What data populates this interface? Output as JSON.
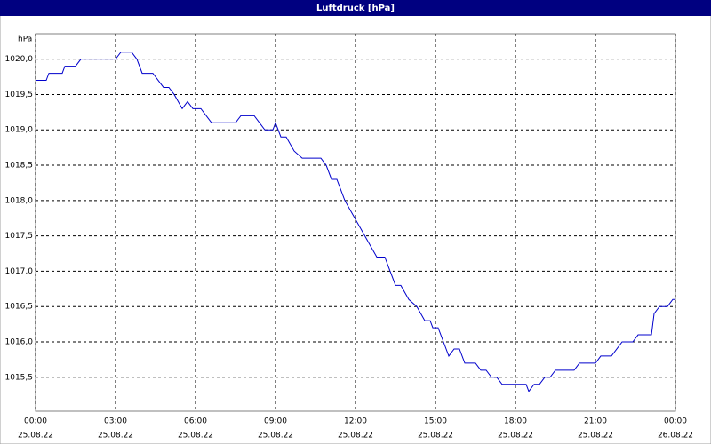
{
  "chart_data": {
    "type": "line",
    "title": "Luftdruck [hPa]",
    "y_label": "hPa",
    "x": [
      0,
      0.4,
      0.5,
      1.0,
      1.1,
      1.5,
      1.7,
      3.0,
      3.2,
      3.6,
      3.8,
      4.0,
      4.4,
      4.6,
      4.8,
      5.0,
      5.2,
      5.5,
      5.7,
      5.9,
      6.2,
      6.4,
      6.6,
      7.5,
      7.7,
      8.2,
      8.4,
      8.6,
      8.9,
      9.0,
      9.2,
      9.4,
      9.7,
      10.0,
      10.7,
      10.9,
      11.1,
      11.3,
      11.6,
      11.9,
      12.2,
      12.5,
      12.8,
      13.1,
      13.3,
      13.5,
      13.7,
      14.0,
      14.3,
      14.6,
      14.8,
      14.9,
      15.1,
      15.3,
      15.5,
      15.7,
      15.9,
      16.1,
      16.5,
      16.7,
      16.9,
      17.1,
      17.3,
      17.5,
      18.4,
      18.5,
      18.7,
      18.9,
      19.1,
      19.3,
      19.5,
      20.2,
      20.4,
      21.0,
      21.2,
      21.6,
      21.8,
      22.0,
      22.4,
      22.6,
      23.1,
      23.2,
      23.4,
      23.7,
      23.9,
      24.0
    ],
    "series": [
      {
        "name": "Luftdruck",
        "color": "#0000cc",
        "values": [
          1019.7,
          1019.7,
          1019.8,
          1019.8,
          1019.9,
          1019.9,
          1020.0,
          1020.0,
          1020.1,
          1020.1,
          1020.0,
          1019.8,
          1019.8,
          1019.7,
          1019.6,
          1019.6,
          1019.5,
          1019.3,
          1019.4,
          1019.3,
          1019.3,
          1019.2,
          1019.1,
          1019.1,
          1019.2,
          1019.2,
          1019.1,
          1019.0,
          1019.0,
          1019.1,
          1018.9,
          1018.9,
          1018.7,
          1018.6,
          1018.6,
          1018.5,
          1018.3,
          1018.3,
          1018.0,
          1017.8,
          1017.6,
          1017.4,
          1017.2,
          1017.2,
          1017.0,
          1016.8,
          1016.8,
          1016.6,
          1016.5,
          1016.3,
          1016.3,
          1016.2,
          1016.2,
          1016.0,
          1015.8,
          1015.9,
          1015.9,
          1015.7,
          1015.7,
          1015.6,
          1015.6,
          1015.5,
          1015.5,
          1015.4,
          1015.4,
          1015.3,
          1015.4,
          1015.4,
          1015.5,
          1015.5,
          1015.6,
          1015.6,
          1015.7,
          1015.7,
          1015.8,
          1015.8,
          1015.9,
          1016.0,
          1016.0,
          1016.1,
          1016.1,
          1016.4,
          1016.5,
          1016.5,
          1016.6,
          1016.6
        ]
      }
    ],
    "xlim": [
      0,
      24
    ],
    "ylim": [
      1015.02,
      1020.36
    ],
    "xticks": [
      {
        "value": 0,
        "label": "00:00"
      },
      {
        "value": 3,
        "label": "03:00"
      },
      {
        "value": 6,
        "label": "06:00"
      },
      {
        "value": 9,
        "label": "09:00"
      },
      {
        "value": 12,
        "label": "12:00"
      },
      {
        "value": 15,
        "label": "15:00"
      },
      {
        "value": 18,
        "label": "18:00"
      },
      {
        "value": 21,
        "label": "21:00"
      },
      {
        "value": 24,
        "label": "00:00"
      }
    ],
    "xtick_dates": [
      "25.08.22",
      "25.08.22",
      "25.08.22",
      "25.08.22",
      "25.08.22",
      "25.08.22",
      "25.08.22",
      "25.08.22",
      "26.08.22"
    ],
    "yticks": [
      {
        "value": 1015.5,
        "label": "1015,5"
      },
      {
        "value": 1016,
        "label": "1016,0"
      },
      {
        "value": 1016.5,
        "label": "1016,5"
      },
      {
        "value": 1017,
        "label": "1017,0"
      },
      {
        "value": 1017.5,
        "label": "1017,5"
      },
      {
        "value": 1018,
        "label": "1018,0"
      },
      {
        "value": 1018.5,
        "label": "1018,5"
      },
      {
        "value": 1019,
        "label": "1019,0"
      },
      {
        "value": 1019.5,
        "label": "1019,5"
      },
      {
        "value": 1020,
        "label": "1020,0"
      }
    ],
    "grid": true
  }
}
